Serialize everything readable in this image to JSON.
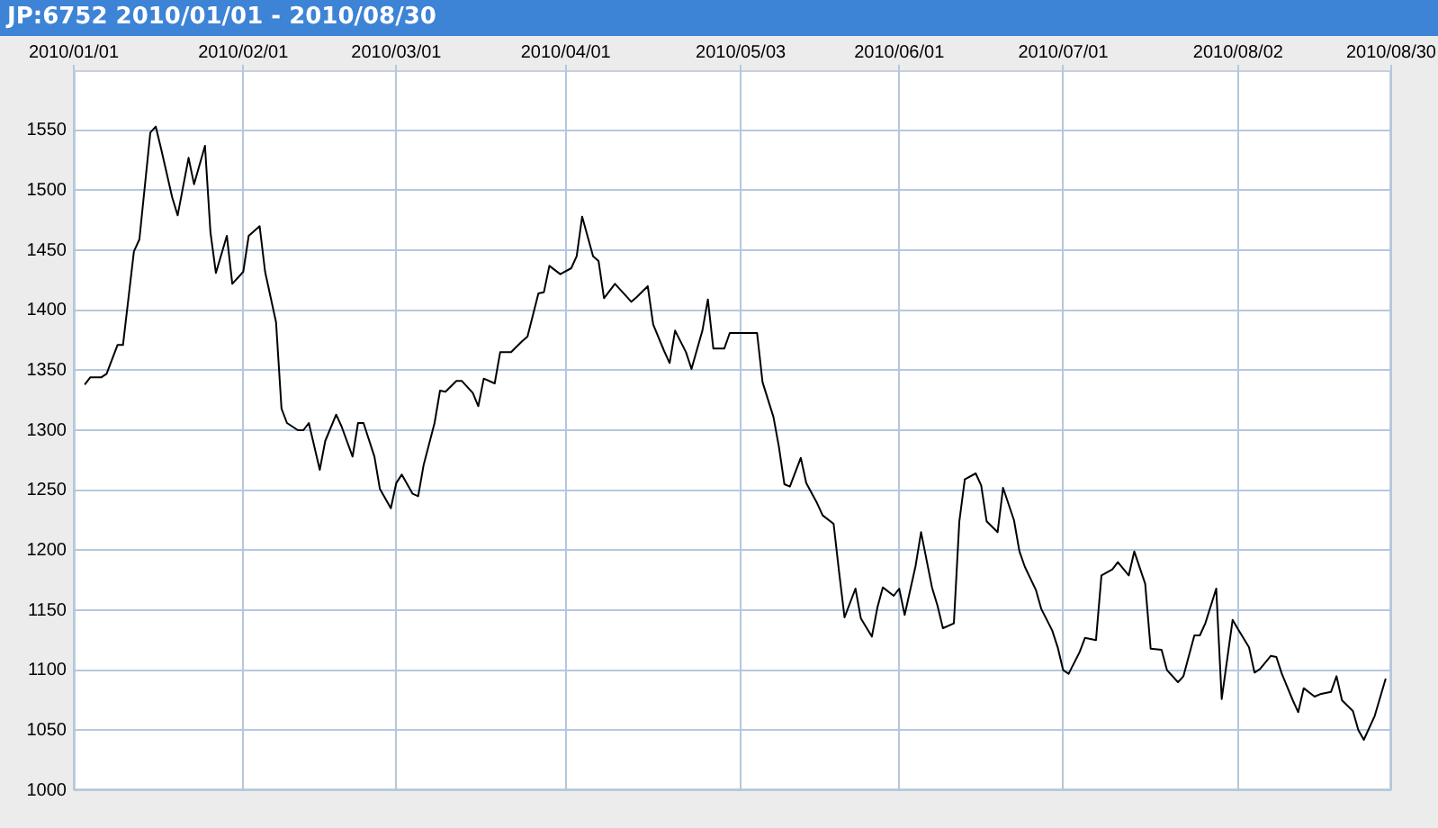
{
  "chart_data": {
    "type": "line",
    "title": "JP:6752 2010/01/01 - 2010/08/30",
    "x": [
      "2010-01-03",
      "2010-01-04",
      "2010-01-06",
      "2010-01-07",
      "2010-01-09",
      "2010-01-10",
      "2010-01-12",
      "2010-01-13",
      "2010-01-15",
      "2010-01-16",
      "2010-01-17",
      "2010-01-19",
      "2010-01-20",
      "2010-01-22",
      "2010-01-23",
      "2010-01-25",
      "2010-01-26",
      "2010-01-27",
      "2010-01-29",
      "2010-01-30",
      "2010-02-01",
      "2010-02-02",
      "2010-02-04",
      "2010-02-05",
      "2010-02-07",
      "2010-02-08",
      "2010-02-09",
      "2010-02-11",
      "2010-02-12",
      "2010-02-13",
      "2010-02-15",
      "2010-02-16",
      "2010-02-18",
      "2010-02-19",
      "2010-02-21",
      "2010-02-22",
      "2010-02-23",
      "2010-02-25",
      "2010-02-26",
      "2010-02-28",
      "2010-03-01",
      "2010-03-02",
      "2010-03-04",
      "2010-03-05",
      "2010-03-06",
      "2010-03-08",
      "2010-03-09",
      "2010-03-10",
      "2010-03-12",
      "2010-03-13",
      "2010-03-15",
      "2010-03-16",
      "2010-03-17",
      "2010-03-19",
      "2010-03-20",
      "2010-03-22",
      "2010-03-24",
      "2010-03-25",
      "2010-03-27",
      "2010-03-28",
      "2010-03-29",
      "2010-03-31",
      "2010-04-02",
      "2010-04-03",
      "2010-04-04",
      "2010-04-06",
      "2010-04-07",
      "2010-04-08",
      "2010-04-10",
      "2010-04-12",
      "2010-04-13",
      "2010-04-14",
      "2010-04-16",
      "2010-04-17",
      "2010-04-19",
      "2010-04-20",
      "2010-04-21",
      "2010-04-23",
      "2010-04-24",
      "2010-04-26",
      "2010-04-27",
      "2010-04-28",
      "2010-04-30",
      "2010-05-01",
      "2010-05-06",
      "2010-05-07",
      "2010-05-09",
      "2010-05-10",
      "2010-05-11",
      "2010-05-12",
      "2010-05-14",
      "2010-05-15",
      "2010-05-17",
      "2010-05-18",
      "2010-05-20",
      "2010-05-21",
      "2010-05-22",
      "2010-05-24",
      "2010-05-25",
      "2010-05-27",
      "2010-05-28",
      "2010-05-29",
      "2010-05-31",
      "2010-06-01",
      "2010-06-02",
      "2010-06-04",
      "2010-06-05",
      "2010-06-07",
      "2010-06-08",
      "2010-06-09",
      "2010-06-11",
      "2010-06-12",
      "2010-06-13",
      "2010-06-15",
      "2010-06-16",
      "2010-06-17",
      "2010-06-19",
      "2010-06-20",
      "2010-06-22",
      "2010-06-23",
      "2010-06-24",
      "2010-06-26",
      "2010-06-27",
      "2010-06-29",
      "2010-06-30",
      "2010-07-01",
      "2010-07-02",
      "2010-07-04",
      "2010-07-05",
      "2010-07-07",
      "2010-07-08",
      "2010-07-10",
      "2010-07-11",
      "2010-07-13",
      "2010-07-14",
      "2010-07-16",
      "2010-07-17",
      "2010-07-19",
      "2010-07-20",
      "2010-07-22",
      "2010-07-23",
      "2010-07-25",
      "2010-07-26",
      "2010-07-27",
      "2010-07-29",
      "2010-07-30",
      "2010-08-01",
      "2010-08-02",
      "2010-08-04",
      "2010-08-05",
      "2010-08-06",
      "2010-08-08",
      "2010-08-09",
      "2010-08-10",
      "2010-08-12",
      "2010-08-13",
      "2010-08-14",
      "2010-08-16",
      "2010-08-17",
      "2010-08-19",
      "2010-08-20",
      "2010-08-21",
      "2010-08-23",
      "2010-08-24",
      "2010-08-25",
      "2010-08-27",
      "2010-08-29"
    ],
    "series": [
      {
        "color": "#000000",
        "values": [
          1338,
          1344,
          1344,
          1347,
          1371,
          1371,
          1449,
          1459,
          1548,
          1553,
          1534,
          1494,
          1479,
          1527,
          1505,
          1537,
          1465,
          1431,
          1462,
          1422,
          1432,
          1462,
          1470,
          1432,
          1390,
          1318,
          1306,
          1300,
          1300,
          1306,
          1267,
          1291,
          1313,
          1303,
          1278,
          1306,
          1306,
          1278,
          1251,
          1235,
          1256,
          1263,
          1247,
          1245,
          1271,
          1306,
          1333,
          1332,
          1341,
          1341,
          1331,
          1320,
          1343,
          1339,
          1365,
          1365,
          1374,
          1378,
          1414,
          1415,
          1437,
          1430,
          1435,
          1445,
          1478,
          1445,
          1441,
          1410,
          1422,
          1412,
          1407,
          1411,
          1420,
          1388,
          1366,
          1356,
          1383,
          1365,
          1351,
          1383,
          1409,
          1368,
          1368,
          1381,
          1381,
          1340,
          1311,
          1286,
          1255,
          1253,
          1277,
          1256,
          1239,
          1229,
          1222,
          1182,
          1144,
          1168,
          1143,
          1128,
          1152,
          1169,
          1162,
          1168,
          1146,
          1187,
          1215,
          1169,
          1154,
          1135,
          1139,
          1224,
          1259,
          1264,
          1254,
          1224,
          1215,
          1252,
          1225,
          1199,
          1186,
          1167,
          1151,
          1133,
          1119,
          1100,
          1097,
          1115,
          1127,
          1125,
          1179,
          1184,
          1190,
          1179,
          1199,
          1172,
          1118,
          1117,
          1100,
          1090,
          1095,
          1129,
          1129,
          1139,
          1168,
          1076,
          1142,
          1134,
          1119,
          1098,
          1101,
          1112,
          1111,
          1097,
          1075,
          1065,
          1085,
          1078,
          1080,
          1082,
          1095,
          1075,
          1066,
          1050,
          1042,
          1062,
          1093
        ]
      }
    ],
    "xlim": [
      "2010-01-01",
      "2010-08-30"
    ],
    "xticks": [
      {
        "value": "2010-01-01",
        "label": "2010/01/01"
      },
      {
        "value": "2010-02-01",
        "label": "2010/02/01"
      },
      {
        "value": "2010-03-01",
        "label": "2010/03/01"
      },
      {
        "value": "2010-04-01",
        "label": "2010/04/01"
      },
      {
        "value": "2010-05-03",
        "label": "2010/05/03"
      },
      {
        "value": "2010-06-01",
        "label": "2010/06/01"
      },
      {
        "value": "2010-07-01",
        "label": "2010/07/01"
      },
      {
        "value": "2010-08-02",
        "label": "2010/08/02"
      },
      {
        "value": "2010-08-30",
        "label": "2010/08/30"
      }
    ],
    "ylim": [
      1000,
      1600
    ],
    "yticks": [
      1000,
      1050,
      1100,
      1150,
      1200,
      1250,
      1300,
      1350,
      1400,
      1450,
      1500,
      1550
    ],
    "grid": true
  }
}
